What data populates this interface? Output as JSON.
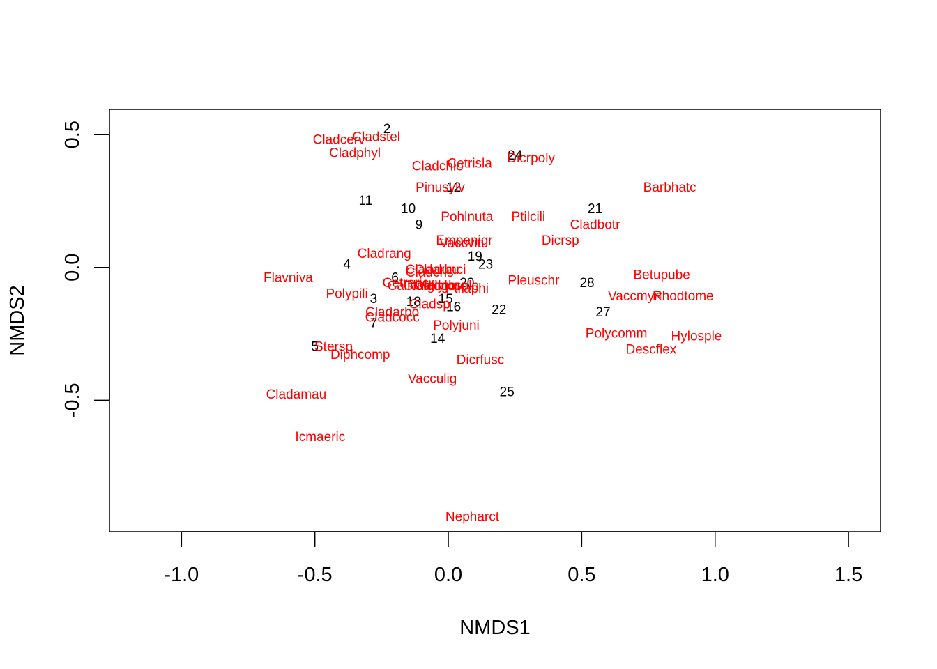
{
  "chart_data": {
    "type": "scatter",
    "title": "",
    "xlabel": "NMDS1",
    "ylabel": "NMDS2",
    "xlim": [
      -1.27,
      1.62
    ],
    "ylim": [
      -0.995,
      0.595
    ],
    "xticks": [
      -1.0,
      -0.5,
      0.0,
      0.5,
      1.0,
      1.5
    ],
    "xtick_labels": [
      "-1.0",
      "-0.5",
      "0.0",
      "0.5",
      "1.0",
      "1.5"
    ],
    "yticks": [
      -0.5,
      0.0,
      0.5
    ],
    "ytick_labels": [
      "-0.5",
      "0.0",
      "0.5"
    ],
    "grid": false,
    "colors": {
      "sites": "#000000",
      "species": "#ff0000",
      "frame": "#000000"
    },
    "series": [
      {
        "kind": "sites",
        "points": [
          {
            "label": "2",
            "x": -0.23,
            "y": 0.52
          },
          {
            "label": "24",
            "x": 0.25,
            "y": 0.42
          },
          {
            "label": "12",
            "x": 0.02,
            "y": 0.3
          },
          {
            "label": "11",
            "x": -0.31,
            "y": 0.25
          },
          {
            "label": "10",
            "x": -0.15,
            "y": 0.22
          },
          {
            "label": "21",
            "x": 0.55,
            "y": 0.22
          },
          {
            "label": "9",
            "x": -0.11,
            "y": 0.16
          },
          {
            "label": "19",
            "x": 0.1,
            "y": 0.04
          },
          {
            "label": "23",
            "x": 0.14,
            "y": 0.01
          },
          {
            "label": "4",
            "x": -0.38,
            "y": 0.01
          },
          {
            "label": "6",
            "x": -0.2,
            "y": -0.04
          },
          {
            "label": "28",
            "x": 0.52,
            "y": -0.06
          },
          {
            "label": "20",
            "x": 0.07,
            "y": -0.06
          },
          {
            "label": "3",
            "x": -0.28,
            "y": -0.12
          },
          {
            "label": "18",
            "x": -0.13,
            "y": -0.13
          },
          {
            "label": "15",
            "x": -0.01,
            "y": -0.12
          },
          {
            "label": "16",
            "x": 0.02,
            "y": -0.15
          },
          {
            "label": "22",
            "x": 0.19,
            "y": -0.16
          },
          {
            "label": "27",
            "x": 0.58,
            "y": -0.17
          },
          {
            "label": "7",
            "x": -0.28,
            "y": -0.21
          },
          {
            "label": "14",
            "x": -0.04,
            "y": -0.27
          },
          {
            "label": "5",
            "x": -0.5,
            "y": -0.3
          },
          {
            "label": "25",
            "x": 0.22,
            "y": -0.47
          }
        ]
      },
      {
        "kind": "species",
        "points": [
          {
            "label": "Cladcerv",
            "x": -0.41,
            "y": 0.48
          },
          {
            "label": "Cladstel",
            "x": -0.27,
            "y": 0.49
          },
          {
            "label": "Cladphyl",
            "x": -0.35,
            "y": 0.43
          },
          {
            "label": "Cladchlo",
            "x": -0.04,
            "y": 0.38
          },
          {
            "label": "Cetrisla",
            "x": 0.08,
            "y": 0.39
          },
          {
            "label": "Dicrpoly",
            "x": 0.31,
            "y": 0.41
          },
          {
            "label": "Pinusylv",
            "x": -0.03,
            "y": 0.3
          },
          {
            "label": "Barbhatc",
            "x": 0.83,
            "y": 0.3
          },
          {
            "label": "Pohlnuta",
            "x": 0.07,
            "y": 0.19
          },
          {
            "label": "Ptilcili",
            "x": 0.3,
            "y": 0.19
          },
          {
            "label": "Cladbotr",
            "x": 0.55,
            "y": 0.16
          },
          {
            "label": "Empenigr",
            "x": 0.06,
            "y": 0.1
          },
          {
            "label": "Vaccviti",
            "x": 0.05,
            "y": 0.09
          },
          {
            "label": "Dicrsp",
            "x": 0.42,
            "y": 0.1
          },
          {
            "label": "Cladrang",
            "x": -0.24,
            "y": 0.05
          },
          {
            "label": "Cladunci",
            "x": -0.03,
            "y": -0.01
          },
          {
            "label": "Cladarbu",
            "x": -0.06,
            "y": -0.01
          },
          {
            "label": "Cladcris",
            "x": -0.07,
            "y": -0.02
          },
          {
            "label": "Flavniva",
            "x": -0.6,
            "y": -0.04
          },
          {
            "label": "Pleuschr",
            "x": 0.32,
            "y": -0.05
          },
          {
            "label": "Betupube",
            "x": 0.8,
            "y": -0.03
          },
          {
            "label": "Cetreric",
            "x": -0.16,
            "y": -0.06
          },
          {
            "label": "Callvulg",
            "x": -0.14,
            "y": -0.07
          },
          {
            "label": "Cladfimb",
            "x": -0.07,
            "y": -0.07
          },
          {
            "label": "Cladgrac",
            "x": -0.03,
            "y": -0.07
          },
          {
            "label": "Hylosple",
            "x": 0.02,
            "y": -0.07
          },
          {
            "label": "Polypili",
            "x": -0.38,
            "y": -0.1
          },
          {
            "label": "Ptilaphi",
            "x": 0.07,
            "y": -0.08
          },
          {
            "label": "Vaccmyrt",
            "x": 0.7,
            "y": -0.11
          },
          {
            "label": "Rhodtome",
            "x": 0.88,
            "y": -0.11
          },
          {
            "label": "Cladsp",
            "x": -0.07,
            "y": -0.14
          },
          {
            "label": "Cladarbo",
            "x": -0.21,
            "y": -0.17
          },
          {
            "label": "Cladcocc",
            "x": -0.21,
            "y": -0.19
          },
          {
            "label": "Polyjuni",
            "x": 0.03,
            "y": -0.22
          },
          {
            "label": "Polycomm",
            "x": 0.63,
            "y": -0.25
          },
          {
            "label": "Hylosple",
            "x": 0.93,
            "y": -0.26
          },
          {
            "label": "Descflex",
            "x": 0.76,
            "y": -0.31
          },
          {
            "label": "Stersp",
            "x": -0.43,
            "y": -0.3
          },
          {
            "label": "Diphcomp",
            "x": -0.33,
            "y": -0.33
          },
          {
            "label": "Dicrfusc",
            "x": 0.12,
            "y": -0.35
          },
          {
            "label": "Vacculig",
            "x": -0.06,
            "y": -0.42
          },
          {
            "label": "Cladamau",
            "x": -0.57,
            "y": -0.48
          },
          {
            "label": "Icmaeric",
            "x": -0.48,
            "y": -0.64
          },
          {
            "label": "Nepharct",
            "x": 0.09,
            "y": -0.94
          }
        ]
      }
    ]
  }
}
